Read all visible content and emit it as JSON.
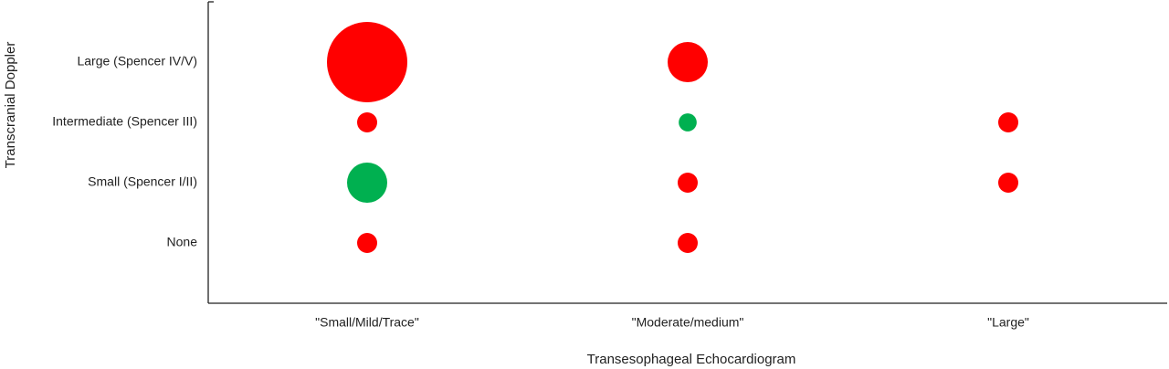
{
  "chart_data": {
    "type": "bubble",
    "x_label": "Transesophageal Echocardiogram",
    "y_label": "Transcranial Doppler",
    "x_categories": [
      "\"Small/Mild/Trace\"",
      "\"Moderate/medium\"",
      "\"Large\""
    ],
    "y_categories": [
      "None",
      "Small (Spencer I/II)",
      "Intermediate (Spencer III)",
      "Large (Spencer IV/V)"
    ],
    "sizes": [
      [
        1,
        1,
        null
      ],
      [
        4,
        1,
        1
      ],
      [
        1,
        0.8,
        1
      ],
      [
        16,
        4,
        null
      ]
    ],
    "colors": [
      [
        "#ff0000",
        "#ff0000",
        null
      ],
      [
        "#00b050",
        "#ff0000",
        "#ff0000"
      ],
      [
        "#ff0000",
        "#00b050",
        "#ff0000"
      ],
      [
        "#ff0000",
        "#ff0000",
        null
      ]
    ]
  }
}
